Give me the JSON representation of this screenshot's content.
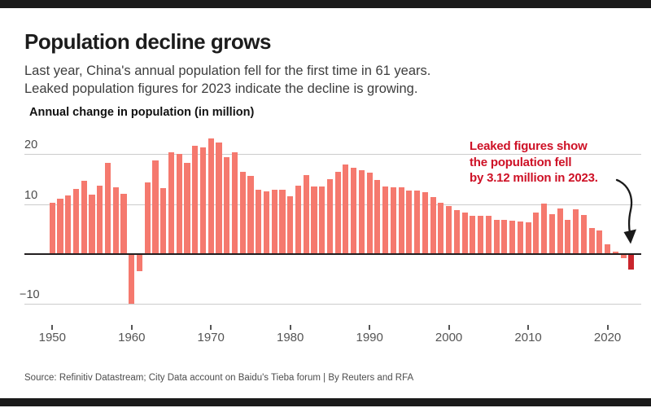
{
  "header": {
    "title": "Population decline grows",
    "subtitle_lines": [
      "Last year, China's annual population fell for the first time in 61 years.",
      "Leaked population figures for 2023 indicate the decline is growing."
    ]
  },
  "chart_data": {
    "type": "bar",
    "title": "Annual change in population (in million)",
    "ylabel": "Annual change in population (in million)",
    "xlabel": "",
    "years": [
      1950,
      1951,
      1952,
      1953,
      1954,
      1955,
      1956,
      1957,
      1958,
      1959,
      1960,
      1961,
      1962,
      1963,
      1964,
      1965,
      1966,
      1967,
      1968,
      1969,
      1970,
      1971,
      1972,
      1973,
      1974,
      1975,
      1976,
      1977,
      1978,
      1979,
      1980,
      1981,
      1982,
      1983,
      1984,
      1985,
      1986,
      1987,
      1988,
      1989,
      1990,
      1991,
      1992,
      1993,
      1994,
      1995,
      1996,
      1997,
      1998,
      1999,
      2000,
      2001,
      2002,
      2003,
      2004,
      2005,
      2006,
      2007,
      2008,
      2009,
      2010,
      2011,
      2012,
      2013,
      2014,
      2015,
      2016,
      2017,
      2018,
      2019,
      2020,
      2021,
      2022,
      2023
    ],
    "values": [
      10.29,
      11.04,
      11.82,
      13.14,
      14.7,
      11.99,
      13.63,
      18.25,
      13.41,
      12.13,
      -10.0,
      -3.48,
      14.36,
      18.77,
      13.27,
      20.39,
      20.04,
      18.26,
      21.66,
      21.37,
      23.21,
      22.37,
      19.48,
      20.34,
      16.48,
      15.61,
      12.97,
      12.57,
      12.85,
      12.83,
      11.63,
      13.67,
      15.82,
      13.54,
      13.49,
      14.94,
      16.56,
      17.93,
      17.26,
      16.78,
      16.29,
      14.9,
      13.48,
      13.46,
      13.33,
      12.71,
      12.68,
      12.37,
      11.35,
      10.25,
      9.57,
      8.84,
      8.26,
      7.74,
      7.61,
      7.68,
      6.92,
      6.81,
      6.73,
      6.48,
      6.41,
      8.25,
      10.06,
      8.04,
      9.2,
      6.8,
      9.06,
      7.79,
      5.3,
      4.67,
      2.04,
      0.48,
      -0.85,
      -3.12
    ],
    "highlight_year": 2023,
    "ylim": [
      -12,
      24
    ],
    "grid": true,
    "legend_position": "none",
    "y_axis": {
      "ticks": [
        {
          "value": 20,
          "label": "20"
        },
        {
          "value": 10,
          "label": "10"
        },
        {
          "value": -10,
          "label": "−10"
        }
      ]
    },
    "x_axis": {
      "ticks": [
        1950,
        1960,
        1970,
        1980,
        1990,
        2000,
        2010,
        2020
      ]
    },
    "annotation": {
      "lines": [
        "Leaked figures show",
        "the population fell",
        "by 3.12 million in 2023."
      ],
      "color": "#ce1126"
    },
    "colors": {
      "bar": "#f5796e",
      "highlight_bar": "#c9252c",
      "grid": "#cccccc",
      "axis": "#231f20",
      "tick": "#555555"
    }
  },
  "footer": {
    "source": "Source: Refinitiv Datastream; City Data account on Baidu's Tieba forum | By Reuters and RFA"
  }
}
